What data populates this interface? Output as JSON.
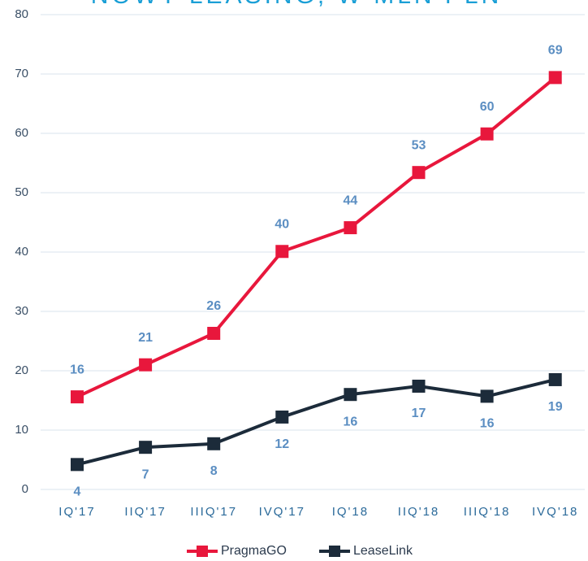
{
  "chart_data": {
    "type": "line",
    "title": "NOWY LEASING, W MLN PLN",
    "categories": [
      "IQ'17",
      "IIQ'17",
      "IIIQ'17",
      "IVQ'17",
      "IQ'18",
      "IIQ'18",
      "IIIQ'18",
      "IVQ'18"
    ],
    "series": [
      {
        "name": "PragmaGO",
        "color": "#e8173c",
        "values": [
          15.6,
          21,
          26.3,
          40.1,
          44.1,
          53.4,
          59.9,
          69.4
        ],
        "value_labels": [
          "16",
          "21",
          "26",
          "40",
          "44",
          "53",
          "60",
          "69"
        ]
      },
      {
        "name": "LeaseLink",
        "color": "#1c2b3a",
        "values": [
          4.2,
          7.1,
          7.7,
          12.2,
          16.0,
          17.4,
          15.7,
          18.5
        ],
        "value_labels": [
          "4",
          "7",
          "8",
          "12",
          "16",
          "17",
          "16",
          "19"
        ]
      }
    ],
    "ylim": [
      0,
      80
    ],
    "yticks": [
      0,
      10,
      20,
      30,
      40,
      50,
      60,
      70,
      80
    ],
    "grid": true,
    "legend": "bottom"
  }
}
